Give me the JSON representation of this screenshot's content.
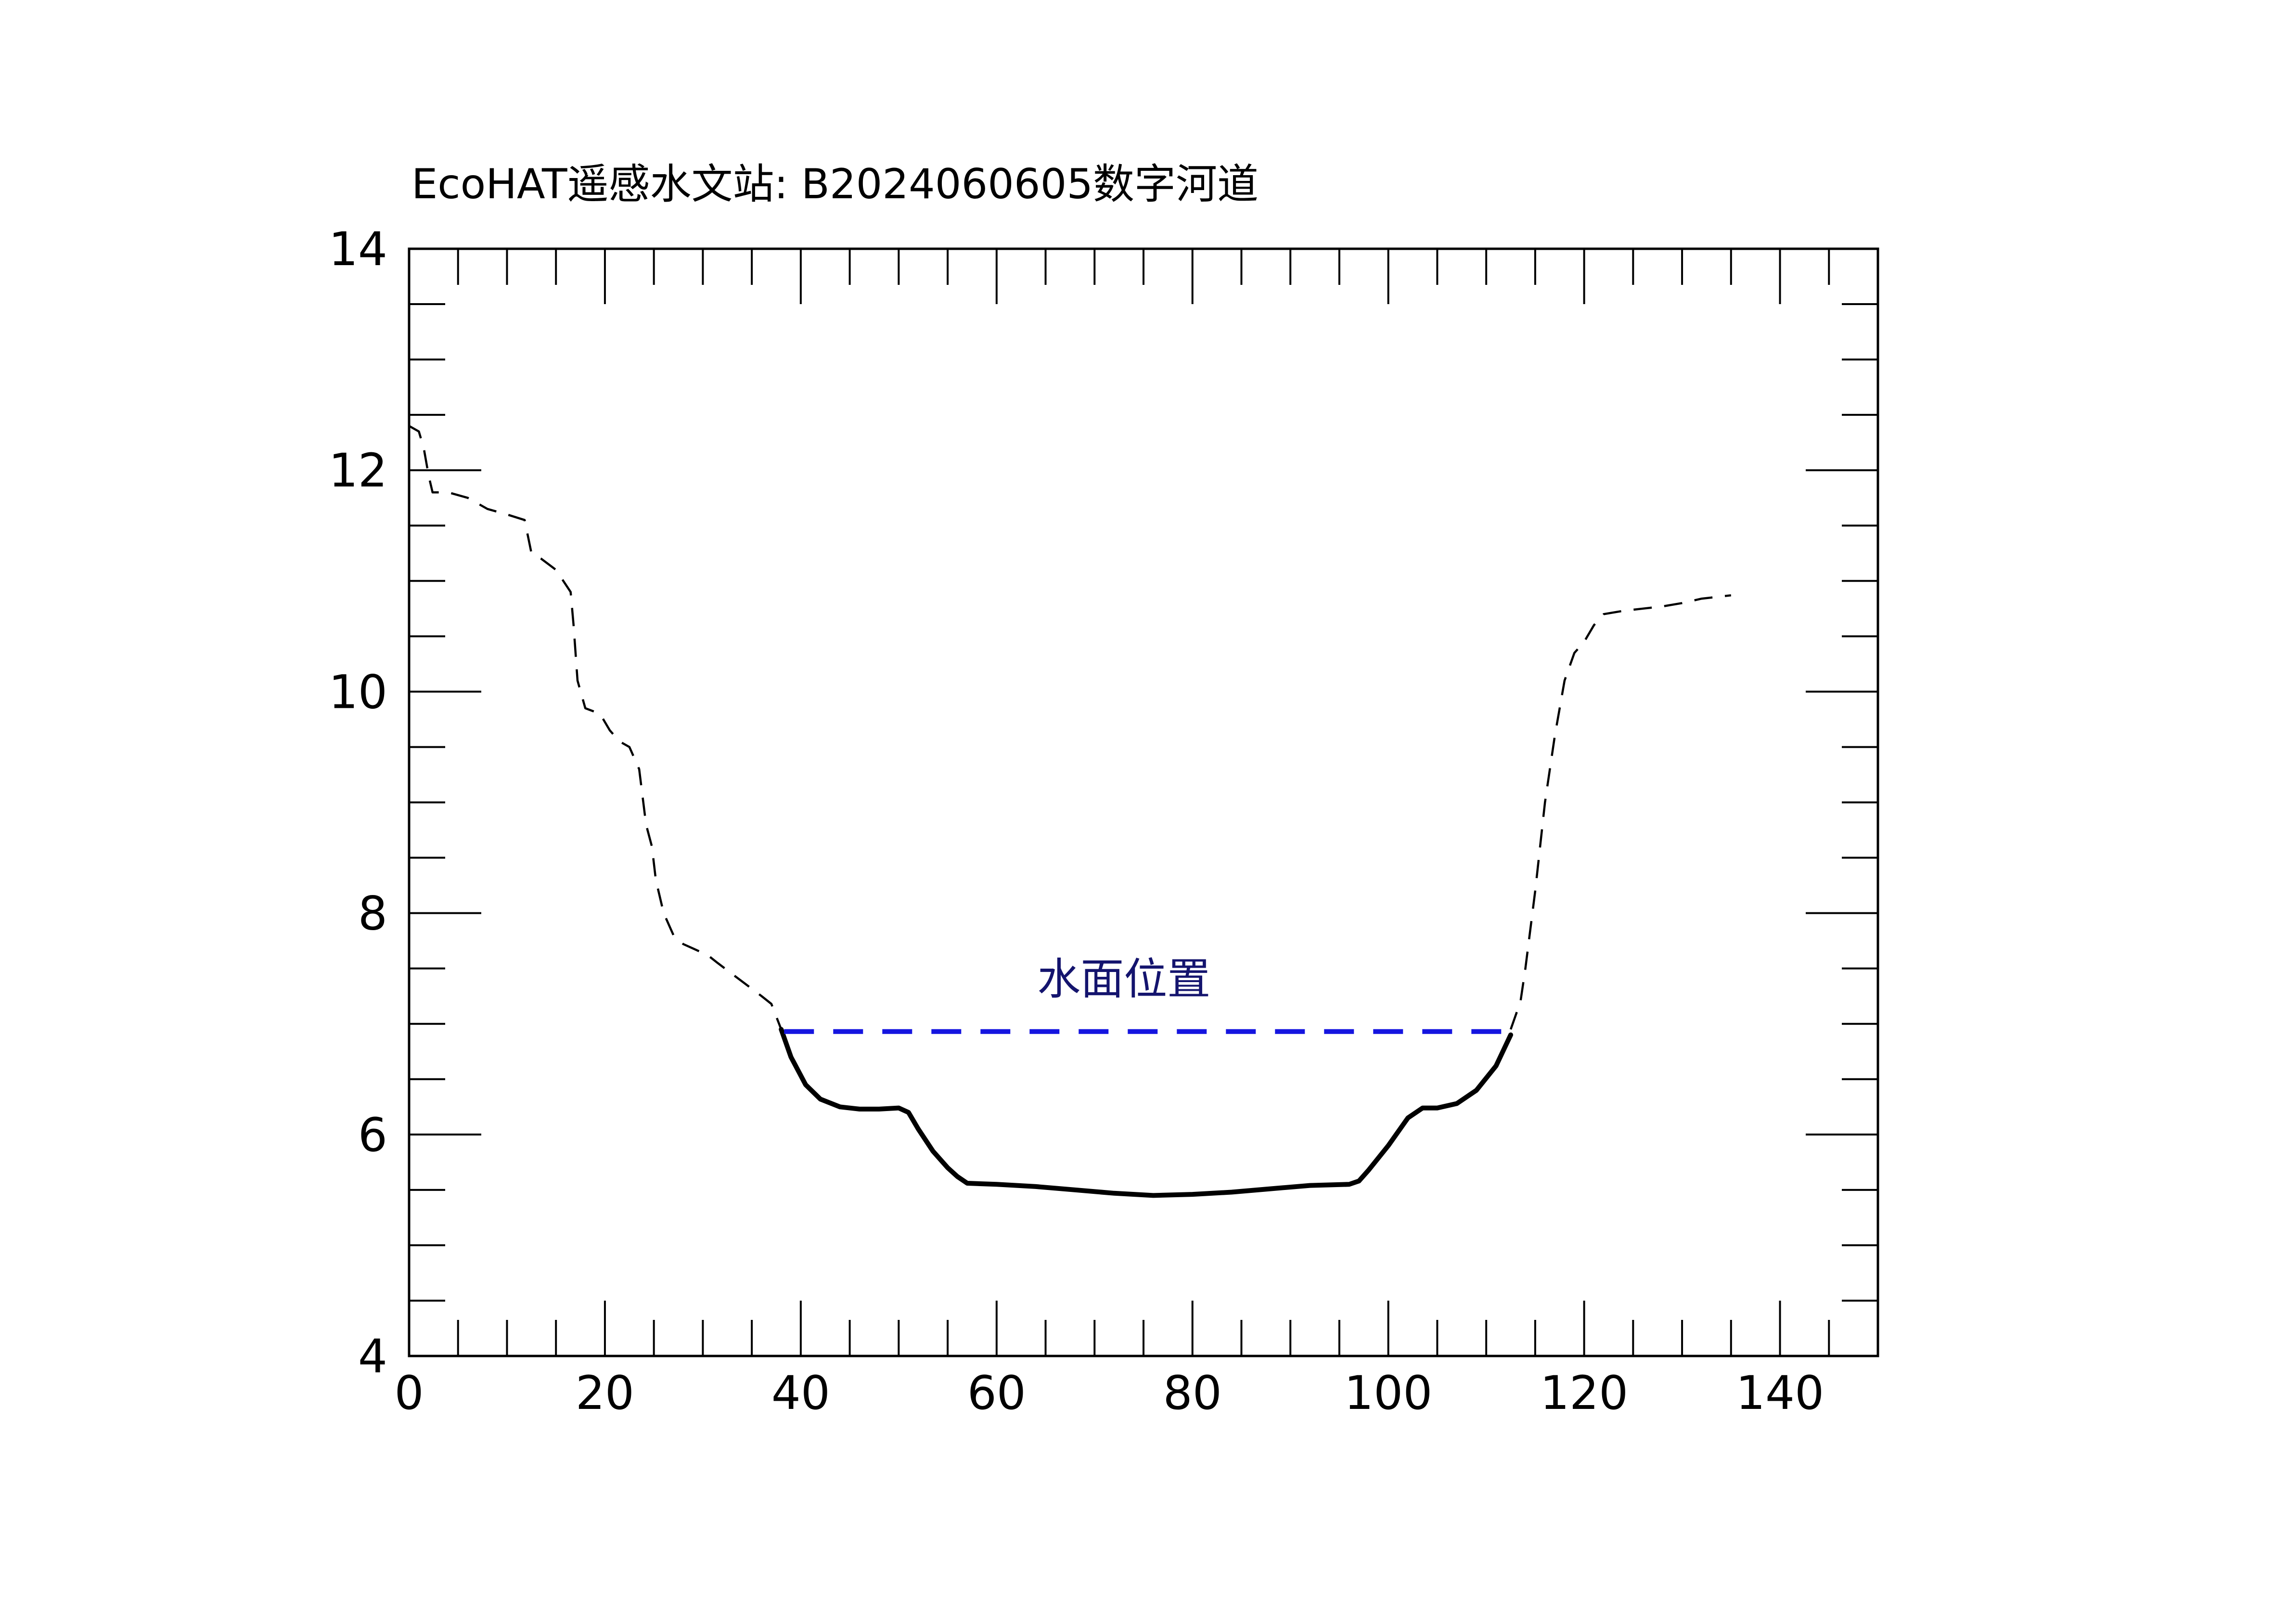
{
  "chart_data": {
    "type": "line",
    "title": "EcoHAT遥感水文站: B2024060605数字河道",
    "xlabel": "",
    "ylabel": "",
    "xlim": [
      0,
      150
    ],
    "ylim": [
      4,
      14
    ],
    "x_major_ticks": [
      0,
      20,
      40,
      60,
      80,
      100,
      120,
      140
    ],
    "x_tick_labels": [
      "0",
      "20",
      "40",
      "60",
      "80",
      "100",
      "120",
      "140"
    ],
    "x_minor_step": 5,
    "y_major_ticks": [
      4,
      6,
      8,
      10,
      12,
      14
    ],
    "y_tick_labels": [
      "4",
      "6",
      "8",
      "10",
      "12",
      "14"
    ],
    "y_minor_step": 0.5,
    "grid": false,
    "series": [
      {
        "style": "dashed",
        "color": "#000000",
        "points": [
          [
            0,
            12.4
          ],
          [
            1,
            12.35
          ],
          [
            1.5,
            12.2
          ],
          [
            2,
            11.95
          ],
          [
            2.4,
            11.8
          ],
          [
            4,
            11.8
          ],
          [
            6,
            11.75
          ],
          [
            8,
            11.65
          ],
          [
            10,
            11.6
          ],
          [
            11.8,
            11.55
          ],
          [
            12.5,
            11.25
          ],
          [
            13.5,
            11.2
          ],
          [
            15,
            11.1
          ],
          [
            16.5,
            10.9
          ],
          [
            16.8,
            10.6
          ],
          [
            17.2,
            10.1
          ],
          [
            18,
            9.85
          ],
          [
            19.5,
            9.8
          ],
          [
            20.5,
            9.65
          ],
          [
            21.5,
            9.55
          ],
          [
            22.5,
            9.5
          ],
          [
            23.5,
            9.3
          ],
          [
            24.2,
            8.8
          ],
          [
            24.8,
            8.6
          ],
          [
            25.2,
            8.3
          ],
          [
            26,
            8.0
          ],
          [
            27,
            7.8
          ],
          [
            28,
            7.72
          ],
          [
            29,
            7.68
          ],
          [
            30.5,
            7.62
          ],
          [
            31.5,
            7.55
          ],
          [
            33,
            7.45
          ],
          [
            34.5,
            7.35
          ],
          [
            36,
            7.25
          ],
          [
            37,
            7.18
          ],
          [
            38,
            6.95
          ]
        ]
      },
      {
        "style": "solid",
        "color": "#000000",
        "points": [
          [
            38,
            6.95
          ],
          [
            39,
            6.7
          ],
          [
            40.5,
            6.45
          ],
          [
            42,
            6.32
          ],
          [
            44,
            6.25
          ],
          [
            46,
            6.23
          ],
          [
            48,
            6.23
          ],
          [
            50,
            6.24
          ],
          [
            51,
            6.2
          ],
          [
            52,
            6.05
          ],
          [
            53.5,
            5.85
          ],
          [
            55,
            5.7
          ],
          [
            56,
            5.62
          ],
          [
            57,
            5.56
          ],
          [
            60,
            5.55
          ],
          [
            64,
            5.53
          ],
          [
            68,
            5.5
          ],
          [
            72,
            5.47
          ],
          [
            76,
            5.45
          ],
          [
            80,
            5.46
          ],
          [
            84,
            5.48
          ],
          [
            88,
            5.51
          ],
          [
            92,
            5.54
          ],
          [
            96,
            5.55
          ],
          [
            97,
            5.58
          ],
          [
            98,
            5.68
          ],
          [
            100,
            5.9
          ],
          [
            102,
            6.15
          ],
          [
            103.5,
            6.24
          ],
          [
            105,
            6.24
          ],
          [
            107,
            6.28
          ],
          [
            109,
            6.4
          ],
          [
            111,
            6.62
          ],
          [
            112.5,
            6.9
          ]
        ]
      },
      {
        "style": "dashed",
        "color": "#000000",
        "points": [
          [
            112.5,
            6.95
          ],
          [
            113.5,
            7.2
          ],
          [
            114,
            7.5
          ],
          [
            115,
            8.2
          ],
          [
            116,
            9.0
          ],
          [
            117,
            9.6
          ],
          [
            118,
            10.1
          ],
          [
            119,
            10.35
          ],
          [
            120,
            10.45
          ],
          [
            121,
            10.6
          ],
          [
            122,
            10.7
          ],
          [
            124,
            10.73
          ],
          [
            126,
            10.75
          ],
          [
            128,
            10.77
          ],
          [
            130,
            10.8
          ],
          [
            132,
            10.84
          ],
          [
            134,
            10.86
          ],
          [
            135,
            10.87
          ]
        ]
      }
    ],
    "water_level": {
      "label": "水面位置",
      "y": 6.93,
      "x_start": 38.3,
      "x_end": 112.7,
      "label_x": 73,
      "label_y": 7.4,
      "color": "#1515e0",
      "label_color": "#14146e",
      "style": "dashed"
    }
  }
}
